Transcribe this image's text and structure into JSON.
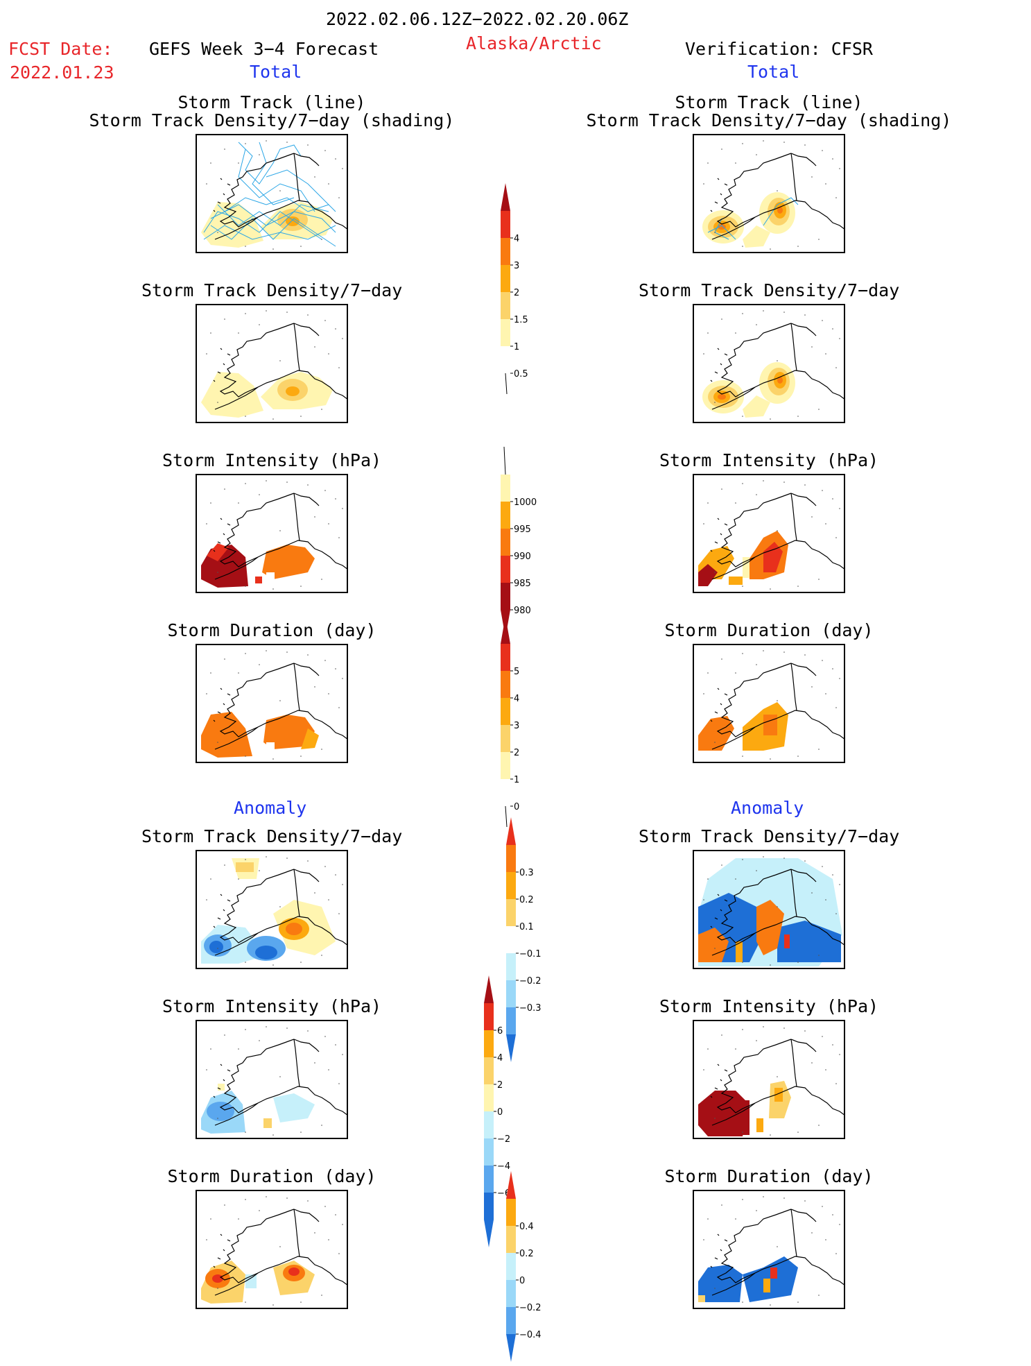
{
  "header": {
    "date_range": "2022.02.06.12Z−2022.02.20.06Z",
    "fcst_label": "FCST Date:",
    "fcst_date": "2022.01.23",
    "forecast_title": "GEFS Week 3−4 Forecast",
    "region": "Alaska/Arctic",
    "verification_title": "Verification: CFSR",
    "total_left": "Total",
    "total_right": "Total",
    "anomaly_left": "Anomaly",
    "anomaly_right": "Anomaly"
  },
  "colors": {
    "ylw1": "#fff5b0",
    "ylw2": "#fbd36a",
    "org1": "#fca910",
    "org2": "#f97a10",
    "red1": "#e8301c",
    "red2": "#a50f15",
    "track": "#2ba6e6",
    "cyan1": "#c6f0fa",
    "cyan2": "#9ad8f8",
    "blu1": "#5aa7ee",
    "blu2": "#1e6fd6"
  },
  "panels": {
    "left": [
      {
        "title1": "Storm Track (line)",
        "title2": "Storm Track Density/7−day (shading)"
      },
      {
        "title1": "Storm Track Density/7−day",
        "title2": ""
      },
      {
        "title1": "Storm Intensity (hPa)",
        "title2": ""
      },
      {
        "title1": "Storm Duration (day)",
        "title2": ""
      },
      {
        "title1": "Storm Track Density/7−day",
        "title2": ""
      },
      {
        "title1": "Storm Intensity (hPa)",
        "title2": ""
      },
      {
        "title1": "Storm Duration (day)",
        "title2": ""
      }
    ],
    "right": [
      {
        "title1": "Storm Track (line)",
        "title2": "Storm Track Density/7−day (shading)"
      },
      {
        "title1": "Storm Track Density/7−day",
        "title2": ""
      },
      {
        "title1": "Storm Intensity (hPa)",
        "title2": ""
      },
      {
        "title1": "Storm Duration (day)",
        "title2": ""
      },
      {
        "title1": "Storm Track Density/7−day",
        "title2": ""
      },
      {
        "title1": "Storm Intensity (hPa)",
        "title2": ""
      },
      {
        "title1": "Storm Duration (day)",
        "title2": ""
      }
    ]
  },
  "chart_data": [
    {
      "type": "heatmap",
      "name_ref": "density_total",
      "colorbar": {
        "labels": [
          "4",
          "3",
          "2",
          "1.5",
          "1",
          "0.5"
        ]
      }
    },
    {
      "type": "heatmap",
      "name_ref": "intensity_total",
      "colorbar": {
        "labels": [
          "1000",
          "995",
          "990",
          "985",
          "980"
        ]
      }
    },
    {
      "type": "heatmap",
      "name_ref": "duration_total",
      "colorbar": {
        "labels": [
          "5",
          "4",
          "3",
          "2",
          "1",
          "0"
        ]
      }
    },
    {
      "type": "heatmap",
      "name_ref": "density_anomaly",
      "colorbar": {
        "labels": [
          "0.3",
          "0.2",
          "0.1",
          "−0.1",
          "−0.2",
          "−0.3"
        ]
      }
    },
    {
      "type": "heatmap",
      "name_ref": "intensity_anomaly",
      "colorbar": {
        "labels": [
          "6",
          "4",
          "2",
          "0",
          "−2",
          "−4",
          "−6"
        ]
      }
    },
    {
      "type": "heatmap",
      "name_ref": "duration_anomaly",
      "colorbar": {
        "labels": [
          "0.4",
          "0.2",
          "0",
          "−0.2",
          "−0.4"
        ]
      }
    }
  ]
}
